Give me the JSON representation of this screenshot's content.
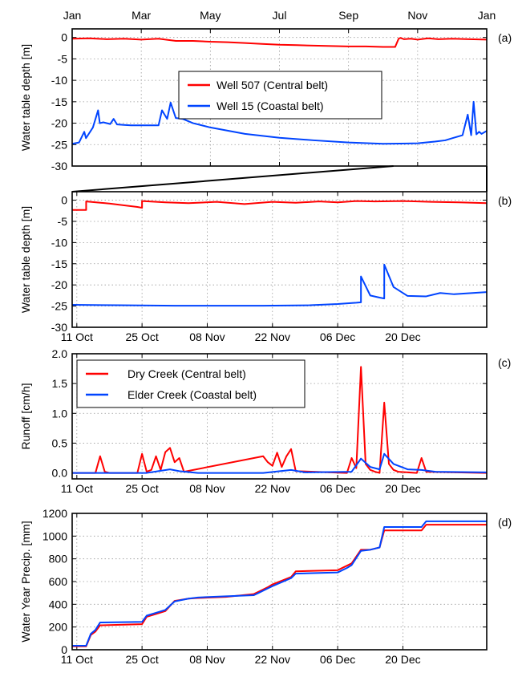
{
  "chart_data": [
    {
      "panel": "(a)",
      "type": "line",
      "ylabel": "Water table depth [m]",
      "ylim": [
        -30,
        2
      ],
      "yticks": [
        0,
        -5,
        -10,
        -15,
        -20,
        -25,
        -30
      ],
      "x_axis": "month of water year (Jan–Jan)",
      "xlim": [
        0,
        12
      ],
      "xtick_positions": [
        0,
        2,
        4,
        6,
        8,
        10,
        12
      ],
      "xtick_labels": [
        "Jan",
        "Mar",
        "May",
        "Jul",
        "Sep",
        "Nov",
        "Jan"
      ],
      "grid": true,
      "legend_position": "center",
      "series": [
        {
          "name": "Well 507 (Central belt)",
          "color": "#ff0000",
          "x": [
            0,
            0.5,
            1,
            1.5,
            2,
            2.5,
            3,
            3.5,
            4,
            4.5,
            5,
            5.5,
            6,
            6.5,
            7,
            7.5,
            8,
            8.5,
            9,
            9.35,
            9.45,
            9.5,
            9.6,
            9.8,
            10,
            10.3,
            10.6,
            11,
            11.5,
            12
          ],
          "y": [
            -0.3,
            -0.2,
            -0.4,
            -0.3,
            -0.5,
            -0.3,
            -0.8,
            -0.8,
            -1.0,
            -1.1,
            -1.3,
            -1.5,
            -1.7,
            -1.8,
            -1.9,
            -2.0,
            -2.1,
            -2.1,
            -2.2,
            -2.2,
            -0.3,
            -0.1,
            -0.4,
            -0.3,
            -0.5,
            -0.2,
            -0.4,
            -0.3,
            -0.4,
            -0.5
          ]
        },
        {
          "name": "Well 15 (Coastal belt)",
          "color": "#0044ff",
          "x": [
            0,
            0.2,
            0.35,
            0.4,
            0.6,
            0.75,
            0.8,
            0.9,
            1.1,
            1.2,
            1.3,
            1.5,
            1.7,
            2.0,
            2.5,
            2.6,
            2.75,
            2.85,
            3.0,
            3.2,
            3.5,
            4,
            5,
            6,
            7,
            8,
            9,
            10,
            10.5,
            10.8,
            11.0,
            11.3,
            11.45,
            11.55,
            11.62,
            11.7,
            11.78,
            11.85,
            12
          ],
          "y": [
            -24.8,
            -24.5,
            -22.0,
            -23.5,
            -21.0,
            -17.0,
            -20.0,
            -19.8,
            -20.2,
            -19.0,
            -20.3,
            -20.4,
            -20.5,
            -20.5,
            -20.5,
            -17.0,
            -19.0,
            -15.2,
            -18.8,
            -19.0,
            -20.0,
            -21.0,
            -22.5,
            -23.4,
            -24.0,
            -24.5,
            -24.8,
            -24.7,
            -24.3,
            -24.0,
            -23.5,
            -22.8,
            -18.0,
            -22.8,
            -15.0,
            -22.6,
            -22.0,
            -22.5,
            -21.8
          ]
        }
      ]
    },
    {
      "panel": "(b)",
      "type": "line",
      "ylabel": "Water table depth [m]",
      "ylim": [
        -30,
        2
      ],
      "yticks": [
        0,
        -5,
        -10,
        -15,
        -20,
        -25,
        -30
      ],
      "x_axis": "date",
      "xlim": [
        "2014-10-10",
        "2015-01-07"
      ],
      "xtick_labels": [
        "11 Oct",
        "25 Oct",
        "08 Nov",
        "22 Nov",
        "06 Dec",
        "20 Dec"
      ],
      "grid": true,
      "series": [
        {
          "name": "Well 507 (Central belt)",
          "color": "#ff0000",
          "x": [
            "2014-10-10",
            "2014-10-13",
            "2014-10-13",
            "2014-10-18",
            "2014-10-24",
            "2014-10-25",
            "2014-10-25",
            "2014-10-30",
            "2014-11-04",
            "2014-11-10",
            "2014-11-16",
            "2014-11-22",
            "2014-11-27",
            "2014-12-02",
            "2014-12-06",
            "2014-12-10",
            "2014-12-14",
            "2014-12-20",
            "2014-12-26",
            "2015-01-01",
            "2015-01-07"
          ],
          "y": [
            -2.3,
            -2.3,
            -0.3,
            -0.8,
            -1.6,
            -1.8,
            -0.2,
            -0.5,
            -0.7,
            -0.4,
            -0.9,
            -0.4,
            -0.6,
            -0.3,
            -0.5,
            -0.2,
            -0.3,
            -0.2,
            -0.4,
            -0.5,
            -0.7
          ]
        },
        {
          "name": "Well 15 (Coastal belt)",
          "color": "#0044ff",
          "x": [
            "2014-10-10",
            "2014-10-20",
            "2014-11-01",
            "2014-11-10",
            "2014-11-20",
            "2014-11-30",
            "2014-12-06",
            "2014-12-10",
            "2014-12-11",
            "2014-12-11",
            "2014-12-13",
            "2014-12-15",
            "2014-12-16",
            "2014-12-16",
            "2014-12-18",
            "2014-12-21",
            "2014-12-25",
            "2014-12-28",
            "2014-12-31",
            "2015-01-07"
          ],
          "y": [
            -24.7,
            -24.8,
            -24.9,
            -24.9,
            -24.9,
            -24.8,
            -24.5,
            -24.2,
            -24.1,
            -18.0,
            -22.5,
            -23.0,
            -23.2,
            -15.2,
            -20.5,
            -22.6,
            -22.7,
            -21.9,
            -22.2,
            -21.7
          ]
        }
      ]
    },
    {
      "panel": "(c)",
      "type": "line",
      "ylabel": "Runoff [cm/h]",
      "ylim": [
        -0.1,
        2.0
      ],
      "yticks": [
        0.0,
        0.5,
        1.0,
        1.5,
        2.0
      ],
      "x_axis": "date",
      "xlim": [
        "2014-10-10",
        "2015-01-07"
      ],
      "xtick_labels": [
        "11 Oct",
        "25 Oct",
        "08 Nov",
        "22 Nov",
        "06 Dec",
        "20 Dec"
      ],
      "grid": true,
      "legend_position": "top-left",
      "series": [
        {
          "name": "Dry Creek (Central belt)",
          "color": "#ff0000",
          "x": [
            "2014-10-10",
            "2014-10-15",
            "2014-10-16",
            "2014-10-17",
            "2014-10-18",
            "2014-10-24",
            "2014-10-25",
            "2014-10-26",
            "2014-10-27",
            "2014-10-28",
            "2014-10-29",
            "2014-10-30",
            "2014-10-31",
            "2014-11-01",
            "2014-11-02",
            "2014-11-03",
            "2014-11-20",
            "2014-11-21",
            "2014-11-22",
            "2014-11-23",
            "2014-11-24",
            "2014-11-25",
            "2014-11-26",
            "2014-11-27",
            "2014-12-08",
            "2014-12-09",
            "2014-12-10",
            "2014-12-11",
            "2014-12-12",
            "2014-12-13",
            "2014-12-14",
            "2014-12-15",
            "2014-12-16",
            "2014-12-17",
            "2014-12-18",
            "2014-12-19",
            "2014-12-23",
            "2014-12-24",
            "2014-12-25",
            "2015-01-07"
          ],
          "y": [
            0.0,
            0.0,
            0.28,
            0.02,
            0.0,
            0.0,
            0.32,
            0.02,
            0.05,
            0.28,
            0.05,
            0.35,
            0.42,
            0.18,
            0.25,
            0.02,
            0.28,
            0.18,
            0.12,
            0.34,
            0.1,
            0.28,
            0.4,
            0.03,
            0.0,
            0.25,
            0.08,
            1.78,
            0.15,
            0.05,
            0.02,
            0.0,
            1.18,
            0.15,
            0.05,
            0.02,
            0.0,
            0.25,
            0.02,
            0.0
          ]
        },
        {
          "name": "Elder Creek (Coastal belt)",
          "color": "#0044ff",
          "x": [
            "2014-10-10",
            "2014-10-26",
            "2014-10-31",
            "2014-11-02",
            "2014-11-06",
            "2014-11-20",
            "2014-11-26",
            "2014-11-29",
            "2014-12-09",
            "2014-12-11",
            "2014-12-13",
            "2014-12-15",
            "2014-12-16",
            "2014-12-18",
            "2014-12-21",
            "2014-12-24",
            "2014-12-27",
            "2015-01-07"
          ],
          "y": [
            0.0,
            0.0,
            0.06,
            0.03,
            0.0,
            0.0,
            0.05,
            0.01,
            0.02,
            0.24,
            0.1,
            0.06,
            0.32,
            0.15,
            0.06,
            0.05,
            0.02,
            0.01
          ]
        }
      ]
    },
    {
      "panel": "(d)",
      "type": "line",
      "ylabel": "Water Year Precip. [mm]",
      "ylim": [
        0,
        1200
      ],
      "yticks": [
        0,
        200,
        400,
        600,
        800,
        1000,
        1200
      ],
      "x_axis": "date",
      "xlim": [
        "2014-10-10",
        "2015-01-07"
      ],
      "xtick_labels": [
        "11 Oct",
        "25 Oct",
        "08 Nov",
        "22 Nov",
        "06 Dec",
        "20 Dec"
      ],
      "grid": true,
      "series": [
        {
          "name": "Dry Creek (Central belt)",
          "color": "#ff0000",
          "x": [
            "2014-10-10",
            "2014-10-13",
            "2014-10-14",
            "2014-10-15",
            "2014-10-16",
            "2014-10-25",
            "2014-10-26",
            "2014-10-28",
            "2014-10-30",
            "2014-11-01",
            "2014-11-04",
            "2014-11-06",
            "2014-11-12",
            "2014-11-18",
            "2014-11-19",
            "2014-11-21",
            "2014-11-22",
            "2014-11-26",
            "2014-11-27",
            "2014-12-06",
            "2014-12-08",
            "2014-12-09",
            "2014-12-11",
            "2014-12-13",
            "2014-12-15",
            "2014-12-16",
            "2014-12-24",
            "2014-12-25",
            "2015-01-07"
          ],
          "y": [
            30,
            30,
            130,
            160,
            215,
            225,
            290,
            315,
            340,
            430,
            450,
            455,
            465,
            490,
            510,
            550,
            575,
            640,
            690,
            700,
            740,
            760,
            880,
            880,
            900,
            1050,
            1050,
            1100,
            1100
          ]
        },
        {
          "name": "Elder Creek (Coastal belt)",
          "color": "#0044ff",
          "x": [
            "2014-10-10",
            "2014-10-13",
            "2014-10-14",
            "2014-10-15",
            "2014-10-16",
            "2014-10-25",
            "2014-10-26",
            "2014-10-28",
            "2014-10-30",
            "2014-11-01",
            "2014-11-04",
            "2014-11-06",
            "2014-11-12",
            "2014-11-18",
            "2014-11-19",
            "2014-11-21",
            "2014-11-22",
            "2014-11-26",
            "2014-11-27",
            "2014-12-06",
            "2014-12-08",
            "2014-12-09",
            "2014-12-11",
            "2014-12-13",
            "2014-12-15",
            "2014-12-16",
            "2014-12-24",
            "2014-12-25",
            "2015-01-07"
          ],
          "y": [
            35,
            35,
            140,
            175,
            240,
            245,
            300,
            325,
            350,
            425,
            450,
            460,
            470,
            480,
            500,
            540,
            560,
            630,
            670,
            680,
            720,
            745,
            870,
            880,
            900,
            1080,
            1080,
            1130,
            1130
          ]
        }
      ]
    }
  ]
}
